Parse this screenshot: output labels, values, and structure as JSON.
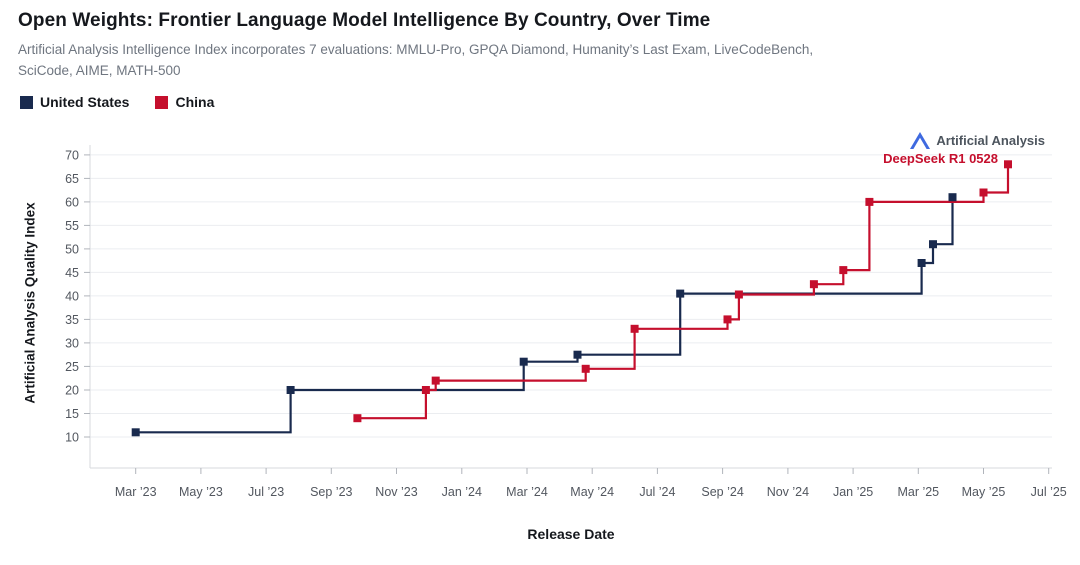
{
  "branding": {
    "logo_text": "Artificial Analysis",
    "logo_color": "#3f6ae0"
  },
  "chart_data": {
    "type": "line",
    "subtype": "step-after",
    "title": "Open Weights: Frontier Language Model Intelligence By Country, Over Time",
    "subtitle": "Artificial Analysis Intelligence Index incorporates 7 evaluations: MMLU-Pro, GPQA Diamond, Humanity’s Last Exam, LiveCodeBench, SciCode, AIME, MATH-500",
    "x_label": "Release Date",
    "y_label": "Artificial Analysis Quality Index",
    "x_unit": "months_since_jan_2023",
    "xlim": [
      0.6,
      30.1
    ],
    "ylim": [
      3.4,
      72.1
    ],
    "grid": "horizontal",
    "legend_position": "top-left",
    "y_ticks": [
      10,
      15,
      20,
      25,
      30,
      35,
      40,
      45,
      50,
      55,
      60,
      65,
      70
    ],
    "x_ticks": [
      {
        "m": 2,
        "label": "Mar ’23"
      },
      {
        "m": 4,
        "label": "May ’23"
      },
      {
        "m": 6,
        "label": "Jul ’23"
      },
      {
        "m": 8,
        "label": "Sep ’23"
      },
      {
        "m": 10,
        "label": "Nov ’23"
      },
      {
        "m": 12,
        "label": "Jan ’24"
      },
      {
        "m": 14,
        "label": "Mar ’24"
      },
      {
        "m": 16,
        "label": "May ’24"
      },
      {
        "m": 18,
        "label": "Jul ’24"
      },
      {
        "m": 20,
        "label": "Sep ’24"
      },
      {
        "m": 22,
        "label": "Nov ’24"
      },
      {
        "m": 24,
        "label": "Jan ’25"
      },
      {
        "m": 26,
        "label": "Mar ’25"
      },
      {
        "m": 28,
        "label": "May ’25"
      },
      {
        "m": 30,
        "label": "Jul ’25"
      }
    ],
    "series": [
      {
        "id": "united-states",
        "name": "United States",
        "color": "#192a4e",
        "points": [
          [
            2.0,
            11
          ],
          [
            6.75,
            20
          ],
          [
            13.9,
            26
          ],
          [
            15.55,
            27.5
          ],
          [
            18.7,
            40.5
          ],
          [
            26.1,
            47
          ],
          [
            26.45,
            51
          ],
          [
            27.05,
            61
          ]
        ]
      },
      {
        "id": "china",
        "name": "China",
        "color": "#c50f2d",
        "points": [
          [
            8.8,
            14
          ],
          [
            10.9,
            20
          ],
          [
            11.2,
            22
          ],
          [
            15.8,
            24.5
          ],
          [
            17.3,
            33
          ],
          [
            20.15,
            35
          ],
          [
            20.5,
            40.3
          ],
          [
            22.8,
            42.5
          ],
          [
            23.7,
            45.5
          ],
          [
            24.5,
            60
          ],
          [
            28.0,
            62
          ],
          [
            28.75,
            68
          ]
        ]
      }
    ],
    "annotation": {
      "text": "DeepSeek R1 0528",
      "color": "#c50f2d",
      "target_point": [
        28.75,
        68
      ],
      "series": "china"
    },
    "style": {
      "grid_color": "#ebedf0",
      "axis_color": "#d7dade",
      "tick_color": "#b0b4bb",
      "tick_label_color": "#52575f"
    }
  }
}
